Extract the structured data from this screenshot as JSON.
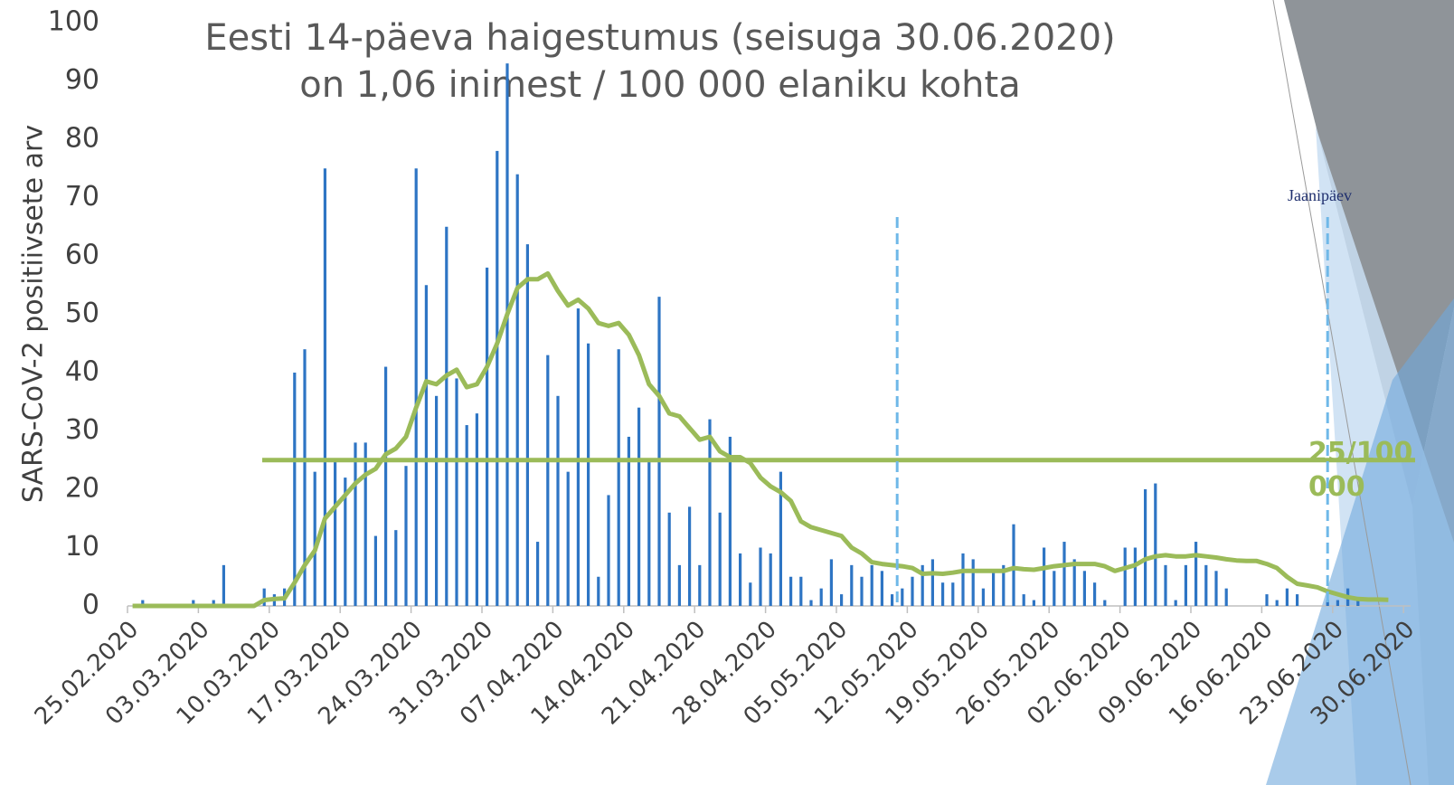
{
  "chart_data": {
    "type": "bar_line",
    "title_lines": [
      "Eesti 14-päeva haigestumus (seisuga 30.06.2020)",
      "on 1,06 inimest / 100 000 elaniku kohta"
    ],
    "y_label": "SARS-CoV-2 positiivsete arv",
    "categories": [
      "25.02.2020",
      null,
      null,
      null,
      null,
      null,
      null,
      "03.03.2020",
      null,
      null,
      null,
      null,
      null,
      null,
      "10.03.2020",
      null,
      null,
      null,
      null,
      null,
      null,
      "17.03.2020",
      null,
      null,
      null,
      null,
      null,
      null,
      "24.03.2020",
      null,
      null,
      null,
      null,
      null,
      null,
      "31.03.2020",
      null,
      null,
      null,
      null,
      null,
      null,
      "07.04.2020",
      null,
      null,
      null,
      null,
      null,
      null,
      "14.04.2020",
      null,
      null,
      null,
      null,
      null,
      null,
      "21.04.2020",
      null,
      null,
      null,
      null,
      null,
      null,
      "28.04.2020",
      null,
      null,
      null,
      null,
      null,
      null,
      "05.05.2020",
      null,
      null,
      null,
      null,
      null,
      null,
      "12.05.2020",
      null,
      null,
      null,
      null,
      null,
      null,
      "19.05.2020",
      null,
      null,
      null,
      null,
      null,
      null,
      "26.05.2020",
      null,
      null,
      null,
      null,
      null,
      null,
      "02.06.2020",
      null,
      null,
      null,
      null,
      null,
      null,
      "09.06.2020",
      null,
      null,
      null,
      null,
      null,
      null,
      "16.06.2020",
      null,
      null,
      null,
      null,
      null,
      null,
      "23.06.2020",
      null,
      null,
      null,
      null,
      null,
      null,
      "30.06.2020"
    ],
    "series": [
      {
        "type": "bar",
        "color": "#2e75c4",
        "values": [
          0,
          1,
          0,
          0,
          0,
          0,
          1,
          0,
          1,
          7,
          0,
          0,
          0,
          3,
          2,
          3,
          40,
          44,
          23,
          75,
          25,
          22,
          28,
          28,
          12,
          41,
          13,
          24,
          75,
          55,
          36,
          65,
          39,
          31,
          33,
          58,
          78,
          93,
          74,
          62,
          11,
          43,
          36,
          23,
          51,
          45,
          5,
          19,
          44,
          29,
          34,
          25,
          53,
          16,
          7,
          17,
          7,
          32,
          16,
          29,
          9,
          4,
          10,
          9,
          23,
          5,
          5,
          1,
          3,
          8,
          2,
          7,
          5,
          7,
          6,
          2,
          3,
          5,
          7,
          8,
          4,
          4,
          9,
          8,
          3,
          6,
          7,
          14,
          2,
          1,
          10,
          6,
          11,
          8,
          6,
          4,
          1,
          0,
          10,
          10,
          20,
          21,
          7,
          1,
          7,
          11,
          7,
          6,
          3,
          0,
          0,
          0,
          2,
          1,
          3,
          2,
          0,
          0,
          1,
          1,
          3,
          1,
          0,
          0,
          0,
          0,
          0
        ]
      },
      {
        "type": "line",
        "color": "#9bbb59",
        "values": [
          0,
          0,
          0,
          0,
          0,
          0,
          0,
          0,
          0,
          0,
          0,
          0,
          0,
          1,
          1.2,
          1.3,
          4,
          7,
          9.5,
          15,
          17,
          19,
          21,
          22.5,
          23.5,
          26,
          27,
          29,
          34,
          38.5,
          38,
          39.5,
          40.5,
          37.5,
          38,
          41,
          45,
          50,
          54.5,
          56,
          56,
          57,
          54,
          51.5,
          52.5,
          51,
          48.5,
          48,
          48.5,
          46.5,
          43,
          38,
          36,
          33,
          32.5,
          30.5,
          28.5,
          29,
          26.5,
          25.5,
          25.5,
          24.5,
          22,
          20.5,
          19.5,
          18,
          14.5,
          13.5,
          13,
          12.5,
          12,
          10,
          9,
          7.5,
          7.2,
          7,
          6.8,
          6.5,
          5.5,
          5.6,
          5.5,
          5.7,
          6,
          6,
          6,
          6,
          6,
          6.5,
          6.3,
          6.2,
          6.5,
          6.8,
          7,
          7.2,
          7.2,
          7.2,
          6.8,
          6,
          6.5,
          7,
          8,
          8.5,
          8.7,
          8.5,
          8.5,
          8.7,
          8.5,
          8.3,
          8,
          7.8,
          7.7,
          7.7,
          7.2,
          6.5,
          5,
          3.8,
          3.5,
          3.2,
          2.5,
          2,
          1.5,
          1.2,
          1.1,
          1.1,
          1.06,
          null,
          null
        ]
      }
    ],
    "threshold": {
      "value": 25,
      "label": "25/100 000",
      "color": "#9bbb59"
    },
    "reference_lines": {
      "x": [
        76,
        118.5
      ],
      "color": "#6fb8e8"
    },
    "annotation": "Jaanipäev",
    "ylim": [
      0,
      100
    ],
    "yticks": [
      0,
      10,
      20,
      30,
      40,
      50,
      60,
      70,
      80,
      90,
      100
    ],
    "grid": false
  }
}
